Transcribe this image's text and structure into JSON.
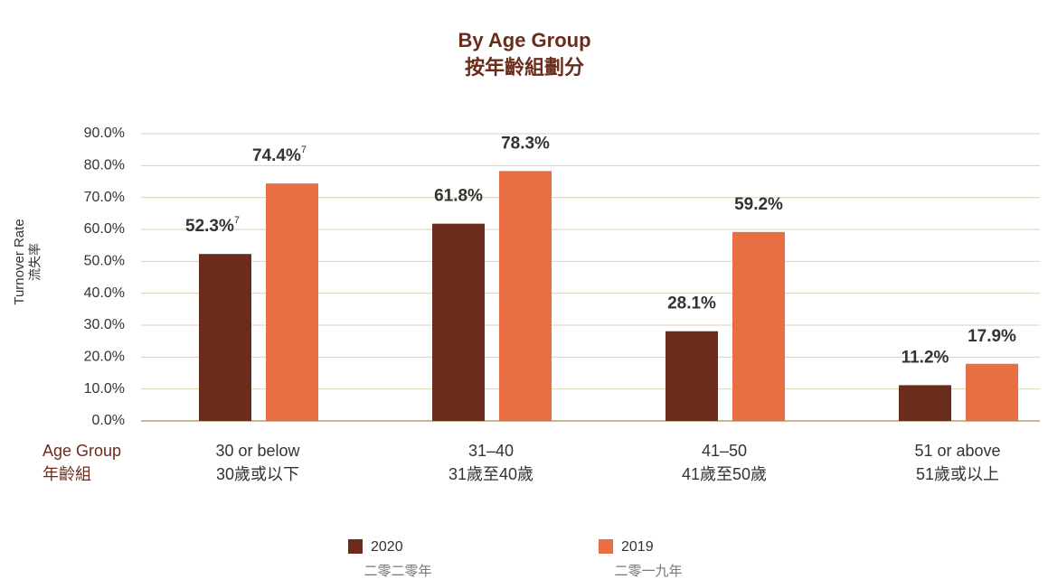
{
  "chart_data": {
    "type": "bar",
    "title": [
      "By Age Group",
      "按年齡組劃分"
    ],
    "y_label": [
      "Turnover Rate",
      "流失率"
    ],
    "x_label": [
      "Age Group",
      "年齡組"
    ],
    "categories": [
      "30 or below",
      "31–40",
      "41–50",
      "51 or above"
    ],
    "categories_zh": [
      "30歲或以下",
      "31歲至40歲",
      "41歲至50歲",
      "51歲或以上"
    ],
    "series": [
      {
        "name": "2020",
        "name_zh": "二零二零年",
        "color": "#6b2c1c",
        "values": [
          52.3,
          61.8,
          28.1,
          11.2
        ],
        "value_labels": [
          "52.3%",
          "61.8%",
          "28.1%",
          "11.2%"
        ],
        "footnote_marks": [
          "7",
          null,
          null,
          null
        ]
      },
      {
        "name": "2019",
        "name_zh": "二零一九年",
        "color": "#e86e44",
        "values": [
          74.4,
          78.3,
          59.2,
          17.9
        ],
        "value_labels": [
          "74.4%",
          "78.3%",
          "59.2%",
          "17.9%"
        ],
        "footnote_marks": [
          "7",
          null,
          null,
          null
        ]
      }
    ],
    "ylim": [
      0,
      90
    ],
    "yticks": [
      {
        "value": 0,
        "label": "0.0%"
      },
      {
        "value": 10,
        "label": "10.0%"
      },
      {
        "value": 20,
        "label": "20.0%"
      },
      {
        "value": 30,
        "label": "30.0%"
      },
      {
        "value": 40,
        "label": "40.0%"
      },
      {
        "value": 50,
        "label": "50.0%"
      },
      {
        "value": 60,
        "label": "60.0%"
      },
      {
        "value": 70,
        "label": "70.0%"
      },
      {
        "value": 80,
        "label": "80.0%"
      },
      {
        "value": 90,
        "label": "90.0%"
      }
    ],
    "grid": true
  }
}
